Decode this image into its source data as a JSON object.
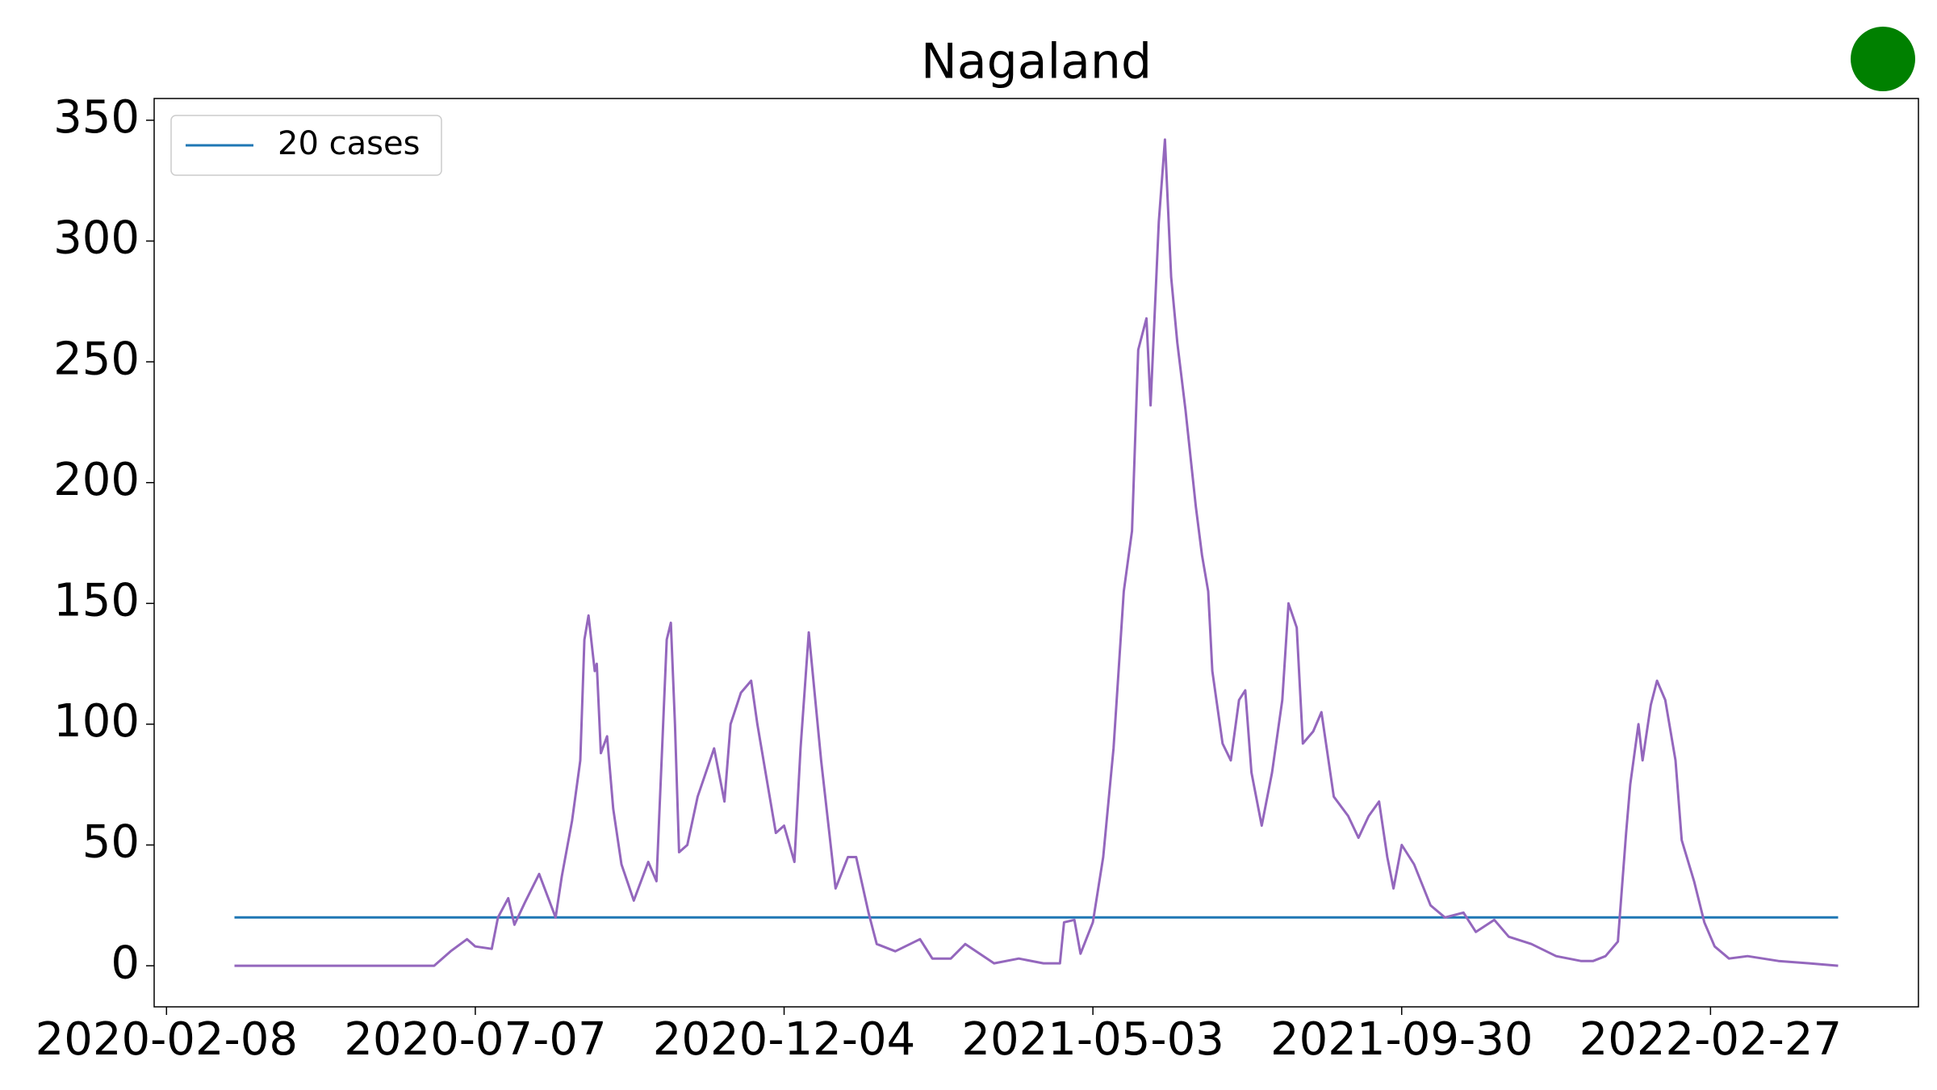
{
  "chart_data": {
    "type": "line",
    "title": "Nagaland",
    "xlim": [
      "2020-02-02",
      "2022-06-08"
    ],
    "xticks": [
      "2020-02-08",
      "2020-07-07",
      "2020-12-04",
      "2021-05-03",
      "2021-09-30",
      "2022-02-27"
    ],
    "ylim": [
      -17,
      359
    ],
    "yticks": [
      0,
      50,
      100,
      150,
      200,
      250,
      300,
      350
    ],
    "legend": "upper left",
    "series": [
      {
        "name": "20 cases",
        "color": "#1f77b4",
        "x": [
          "2020-03-12",
          "2022-04-30"
        ],
        "values": [
          20,
          20
        ]
      },
      {
        "color": "#9467bd",
        "x": [
          "2020-03-12",
          "2020-06-17",
          "2020-06-25",
          "2020-07-03",
          "2020-07-07",
          "2020-07-15",
          "2020-07-18",
          "2020-07-23",
          "2020-07-26",
          "2020-07-31",
          "2020-08-07",
          "2020-08-15",
          "2020-08-18",
          "2020-08-23",
          "2020-08-27",
          "2020-08-29",
          "2020-08-31",
          "2020-09-03",
          "2020-09-04",
          "2020-09-06",
          "2020-09-09",
          "2020-09-12",
          "2020-09-16",
          "2020-09-22",
          "2020-09-29",
          "2020-10-03",
          "2020-10-08",
          "2020-10-10",
          "2020-10-12",
          "2020-10-14",
          "2020-10-18",
          "2020-10-23",
          "2020-10-31",
          "2020-11-05",
          "2020-11-08",
          "2020-11-13",
          "2020-11-18",
          "2020-11-21",
          "2020-11-26",
          "2020-11-30",
          "2020-12-04",
          "2020-12-09",
          "2020-12-12",
          "2020-12-16",
          "2020-12-22",
          "2020-12-29",
          "2021-01-04",
          "2021-01-08",
          "2021-01-14",
          "2021-01-18",
          "2021-01-27",
          "2021-02-08",
          "2021-02-14",
          "2021-02-23",
          "2021-03-02",
          "2021-03-16",
          "2021-03-28",
          "2021-04-09",
          "2021-04-17",
          "2021-04-19",
          "2021-04-24",
          "2021-04-27",
          "2021-05-03",
          "2021-05-08",
          "2021-05-13",
          "2021-05-18",
          "2021-05-22",
          "2021-05-25",
          "2021-05-29",
          "2021-05-31",
          "2021-06-04",
          "2021-06-07",
          "2021-06-10",
          "2021-06-13",
          "2021-06-17",
          "2021-06-22",
          "2021-06-25",
          "2021-06-28",
          "2021-06-30",
          "2021-07-05",
          "2021-07-09",
          "2021-07-13",
          "2021-07-16",
          "2021-07-19",
          "2021-07-24",
          "2021-07-29",
          "2021-08-03",
          "2021-08-06",
          "2021-08-10",
          "2021-08-13",
          "2021-08-18",
          "2021-08-22",
          "2021-08-28",
          "2021-09-04",
          "2021-09-09",
          "2021-09-14",
          "2021-09-19",
          "2021-09-23",
          "2021-09-26",
          "2021-09-30",
          "2021-10-06",
          "2021-10-14",
          "2021-10-21",
          "2021-10-30",
          "2021-11-05",
          "2021-11-14",
          "2021-11-21",
          "2021-12-02",
          "2021-12-14",
          "2021-12-26",
          "2022-01-01",
          "2022-01-07",
          "2022-01-13",
          "2022-01-17",
          "2022-01-19",
          "2022-01-23",
          "2022-01-25",
          "2022-01-29",
          "2022-02-01",
          "2022-02-05",
          "2022-02-10",
          "2022-02-13",
          "2022-02-19",
          "2022-02-24",
          "2022-03-01",
          "2022-03-08",
          "2022-03-17",
          "2022-04-01",
          "2022-04-16",
          "2022-04-30"
        ],
        "values": [
          0,
          0,
          6,
          11,
          8,
          7,
          20,
          28,
          17,
          26,
          38,
          20,
          37,
          60,
          85,
          135,
          145,
          122,
          125,
          88,
          95,
          65,
          42,
          27,
          43,
          35,
          135,
          142,
          100,
          47,
          50,
          70,
          90,
          68,
          100,
          113,
          118,
          100,
          75,
          55,
          58,
          43,
          90,
          138,
          85,
          32,
          45,
          45,
          22,
          9,
          6,
          11,
          3,
          3,
          9,
          1,
          3,
          1,
          1,
          18,
          19,
          5,
          18,
          45,
          90,
          155,
          180,
          255,
          268,
          232,
          308,
          342,
          285,
          258,
          230,
          190,
          170,
          155,
          122,
          92,
          85,
          110,
          114,
          80,
          58,
          80,
          110,
          150,
          140,
          92,
          97,
          105,
          70,
          62,
          53,
          62,
          68,
          45,
          32,
          50,
          42,
          25,
          20,
          22,
          14,
          19,
          12,
          9,
          4,
          2,
          2,
          4,
          10,
          55,
          75,
          100,
          85,
          108,
          118,
          110,
          85,
          52,
          35,
          18,
          8,
          3,
          4,
          2,
          1,
          0
        ]
      }
    ]
  }
}
